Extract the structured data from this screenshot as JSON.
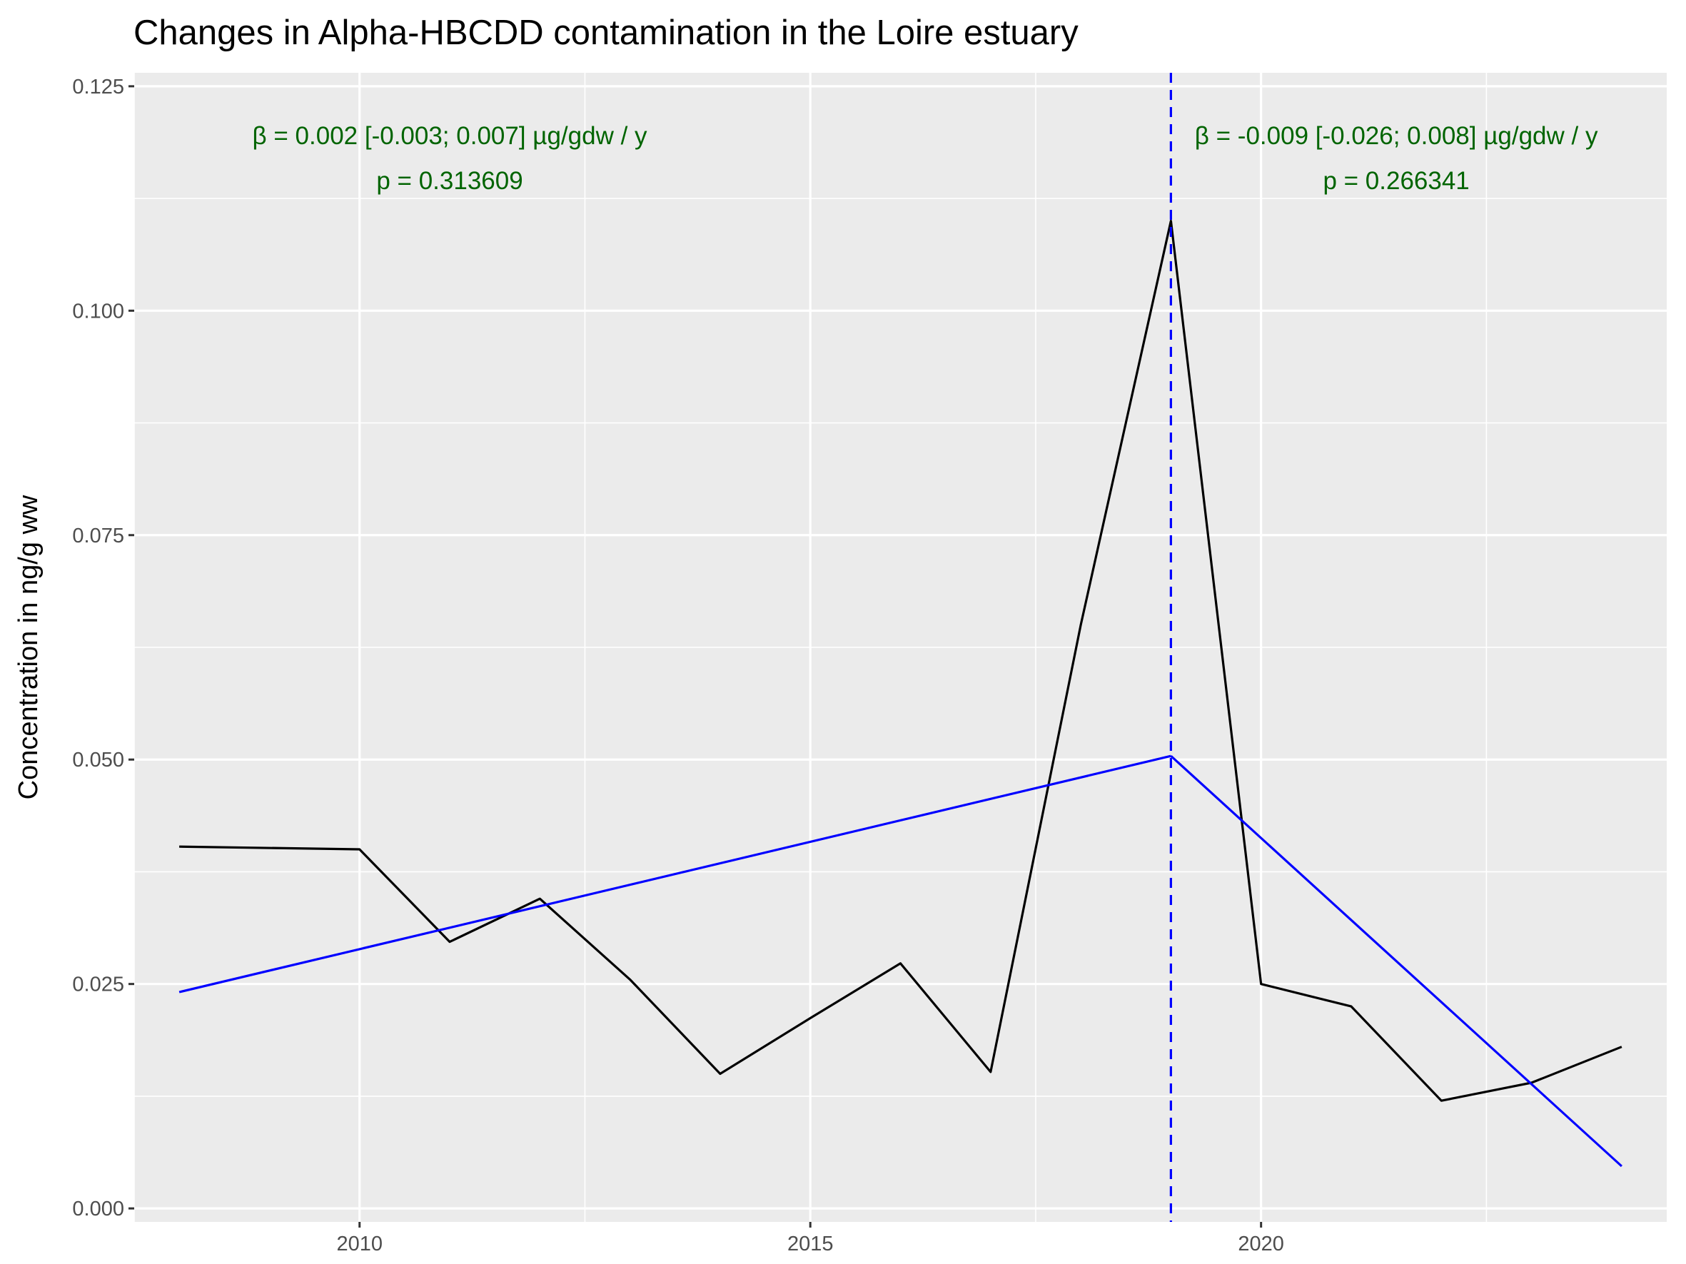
{
  "chart_data": {
    "type": "line",
    "title": "Changes in Alpha-HBCDD contamination in the Loire estuary",
    "xlabel": "",
    "ylabel": "Concentration in ng/g ww",
    "xlim": [
      2007.5,
      2024.5
    ],
    "ylim": [
      -0.0015,
      0.1265
    ],
    "x_ticks": [
      2010,
      2015,
      2020
    ],
    "x_tick_labels": [
      "2010",
      "2015",
      "2020"
    ],
    "y_ticks": [
      0,
      0.025,
      0.05,
      0.075,
      0.1,
      0.125
    ],
    "y_tick_labels": [
      "0.000",
      "0.025",
      "0.050",
      "0.075",
      "0.100",
      "0.125"
    ],
    "grid": true,
    "legend": "none",
    "series": [
      {
        "color": "#000000",
        "x": [
          2008,
          2010,
          2011,
          2012,
          2013,
          2014,
          2015,
          2016,
          2017,
          2018,
          2019,
          2020,
          2021,
          2022,
          2023,
          2024
        ],
        "y": [
          0.0403,
          0.04,
          0.0297,
          0.0345,
          0.0255,
          0.015,
          0.0212,
          0.0273,
          0.0152,
          0.065,
          0.11,
          0.025,
          0.0225,
          0.012,
          0.014,
          0.018
        ]
      },
      {
        "color": "#0000ff",
        "x": [
          2008,
          2019
        ],
        "y": [
          0.0241,
          0.0504
        ]
      },
      {
        "color": "#0000ff",
        "x": [
          2019,
          2024
        ],
        "y": [
          0.0504,
          0.0047
        ]
      }
    ],
    "vline": {
      "x": 2019,
      "color": "#0000ff",
      "style": "dashed"
    },
    "annotations": [
      {
        "text": "β = 0.002 [-0.003; 0.007] µg/gdw / y",
        "x": 2011.0,
        "y": 0.1195,
        "color": "#006400"
      },
      {
        "text": "p = 0.313609",
        "x": 2011.0,
        "y": 0.1145,
        "color": "#006400"
      },
      {
        "text": "β = -0.009 [-0.026; 0.008] µg/gdw / y",
        "x": 2021.5,
        "y": 0.1195,
        "color": "#006400"
      },
      {
        "text": "p = 0.266341",
        "x": 2021.5,
        "y": 0.1145,
        "color": "#006400"
      }
    ],
    "colors": {
      "panel": "#ebebeb",
      "grid": "#ffffff",
      "tick": "#333333"
    }
  }
}
